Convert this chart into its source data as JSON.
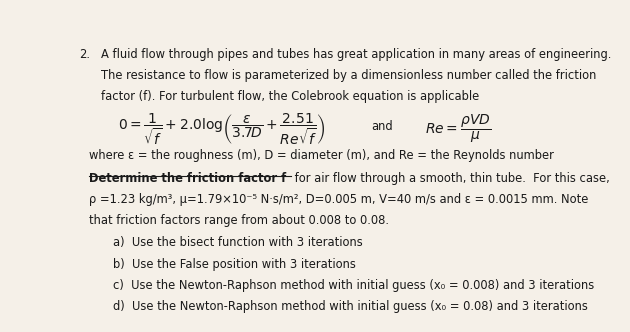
{
  "bg_color": "#f5f0e8",
  "text_color": "#1a1a1a",
  "line1": "A fluid flow through pipes and tubes has great application in many areas of engineering.",
  "line2": "The resistance to flow is parameterized by a dimensionless number called the friction",
  "line3": "factor (f). For turbulent flow, the Colebrook equation is applicable",
  "where_line": "where ε = the roughness (m), D = diameter (m), and Re = the Reynolds number",
  "bold_rest": " for air flow through a smooth, thin tube.  For this case,",
  "param_line": "ρ =1.23 kg/m³, μ=1.79×10⁻⁵ N·s/m², D=0.005 m, V=40 m/s and ε = 0.0015 mm. Note",
  "note_line": "that friction factors range from about 0.008 to 0.08.",
  "item_a": "a)  Use the bisect function with 3 iterations",
  "item_b": "b)  Use the False position with 3 iterations",
  "item_c": "c)  Use the Newton-Raphson method with initial guess (x₀ = 0.008) and 3 iterations",
  "item_d": "d)  Use the Newton-Raphson method with initial guess (x₀ = 0.08) and 3 iterations"
}
